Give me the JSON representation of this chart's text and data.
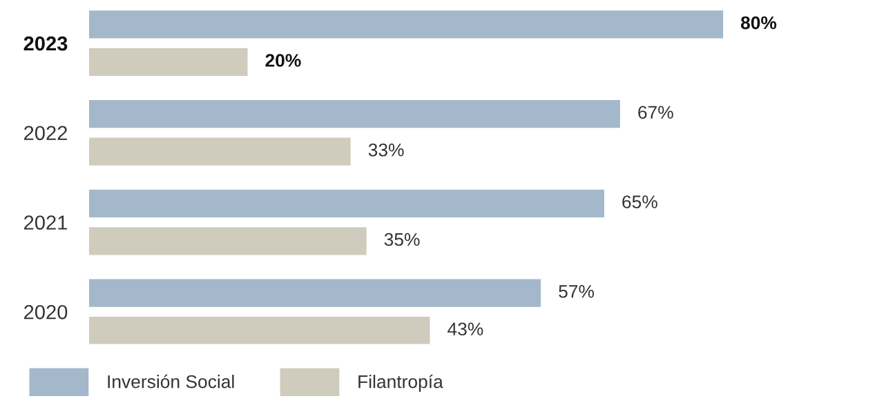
{
  "chart_data": {
    "type": "bar",
    "orientation": "horizontal",
    "categories": [
      "2023",
      "2022",
      "2021",
      "2020"
    ],
    "series": [
      {
        "name": "Inversión Social",
        "color": "#a3b8cb",
        "values": [
          80,
          67,
          65,
          57
        ],
        "value_labels": [
          "80%",
          "67%",
          "65%",
          "57%"
        ]
      },
      {
        "name": "Filantropía",
        "color": "#cfcbbd",
        "values": [
          20,
          33,
          35,
          43
        ],
        "value_labels": [
          "20%",
          "33%",
          "35%",
          "43%"
        ]
      }
    ],
    "tick_labels": "y",
    "grid": false,
    "legend": "bottom left"
  }
}
